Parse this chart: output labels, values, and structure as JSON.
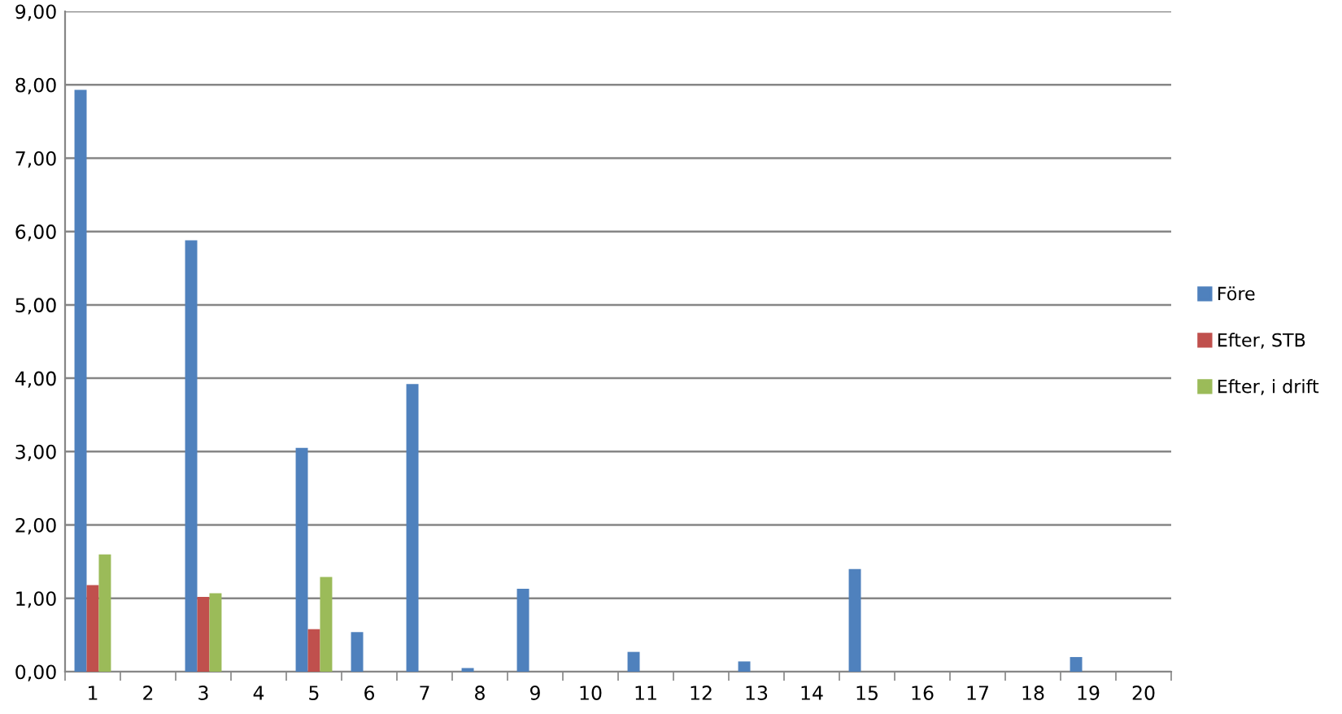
{
  "chart_data": {
    "type": "bar",
    "categories": [
      "1",
      "2",
      "3",
      "4",
      "5",
      "6",
      "7",
      "8",
      "9",
      "10",
      "11",
      "12",
      "13",
      "14",
      "15",
      "16",
      "17",
      "18",
      "19",
      "20"
    ],
    "series": [
      {
        "name": "Före",
        "color": "#4f81bd",
        "values": [
          7.93,
          null,
          5.88,
          null,
          3.05,
          0.54,
          3.92,
          0.05,
          1.13,
          null,
          0.27,
          null,
          0.14,
          null,
          1.4,
          null,
          null,
          null,
          0.2,
          null
        ]
      },
      {
        "name": "Efter, STB",
        "color": "#c0504d",
        "values": [
          1.18,
          null,
          1.02,
          null,
          0.58,
          null,
          null,
          null,
          null,
          null,
          null,
          null,
          null,
          null,
          null,
          null,
          null,
          null,
          null,
          null
        ]
      },
      {
        "name": "Efter, i drift",
        "color": "#9bbb59",
        "values": [
          1.6,
          null,
          1.07,
          null,
          1.29,
          null,
          null,
          null,
          null,
          null,
          null,
          null,
          null,
          null,
          null,
          null,
          null,
          null,
          null,
          null
        ]
      }
    ],
    "ylim": [
      0,
      9
    ],
    "yticks": [
      {
        "value": 0,
        "label": "0,00"
      },
      {
        "value": 1,
        "label": "1,00"
      },
      {
        "value": 2,
        "label": "2,00"
      },
      {
        "value": 3,
        "label": "3,00"
      },
      {
        "value": 4,
        "label": "4,00"
      },
      {
        "value": 5,
        "label": "5,00"
      },
      {
        "value": 6,
        "label": "6,00"
      },
      {
        "value": 7,
        "label": "7,00"
      },
      {
        "value": 8,
        "label": "8,00"
      },
      {
        "value": 9,
        "label": "9,00"
      }
    ],
    "grid": "y",
    "legend": "right"
  }
}
